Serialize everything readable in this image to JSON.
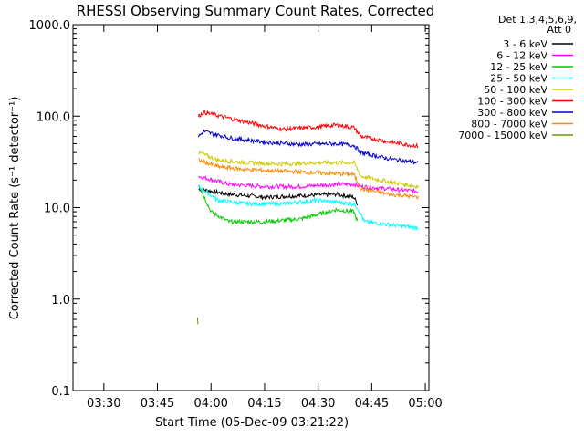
{
  "chart_data": {
    "type": "line",
    "title": "RHESSI Observing Summary Count Rates, Corrected",
    "xlabel": "Start Time (05-Dec-09 03:21:22)",
    "ylabel": "Corrected Count Rate (s⁻¹ detector⁻¹)",
    "yscale": "log",
    "ylim": [
      0.1,
      1000.0
    ],
    "xlim": [
      "03:21:22",
      "05:01:00"
    ],
    "x_ticks": [
      "03:30",
      "03:45",
      "04:00",
      "04:15",
      "04:30",
      "04:45",
      "05:00"
    ],
    "y_ticks": [
      "0.1",
      "1.0",
      "10.0",
      "100.0",
      "1000.0"
    ],
    "grid": false,
    "legend_position": "top-right",
    "legend_header": [
      "Det 1,3,4,5,6,9,",
      "Att 0"
    ],
    "series": [
      {
        "name": "3 - 6 keV",
        "color": "#000000",
        "points": [
          [
            "03:56:30",
            16
          ],
          [
            "04:05",
            14
          ],
          [
            "04:15",
            13
          ],
          [
            "04:25",
            13.5
          ],
          [
            "04:35",
            14
          ],
          [
            "04:40",
            13
          ],
          [
            "04:41",
            11
          ]
        ]
      },
      {
        "name": "6 - 12 keV",
        "color": "#ff00ff",
        "points": [
          [
            "03:56:30",
            22
          ],
          [
            "04:05",
            18
          ],
          [
            "04:15",
            17
          ],
          [
            "04:25",
            17
          ],
          [
            "04:35",
            18
          ],
          [
            "04:40",
            18
          ],
          [
            "04:42",
            17
          ],
          [
            "04:50",
            16
          ],
          [
            "04:58",
            15
          ]
        ]
      },
      {
        "name": "12 - 25 keV",
        "color": "#00cc00",
        "points": [
          [
            "03:56:30",
            18
          ],
          [
            "04:00",
            9
          ],
          [
            "04:05",
            7
          ],
          [
            "04:15",
            7
          ],
          [
            "04:25",
            7.5
          ],
          [
            "04:35",
            9.5
          ],
          [
            "04:40",
            9
          ],
          [
            "04:41",
            7
          ]
        ]
      },
      {
        "name": "25 - 50 keV",
        "color": "#00ffff",
        "points": [
          [
            "03:56:30",
            17
          ],
          [
            "04:02",
            12
          ],
          [
            "04:10",
            11
          ],
          [
            "04:20",
            11
          ],
          [
            "04:30",
            12
          ],
          [
            "04:40",
            11
          ],
          [
            "04:41",
            10
          ],
          [
            "04:43",
            7
          ],
          [
            "04:50",
            6.5
          ],
          [
            "04:58",
            6
          ]
        ]
      },
      {
        "name": "50 - 100 keV",
        "color": "#cccc00",
        "points": [
          [
            "03:56:30",
            40
          ],
          [
            "04:02",
            33
          ],
          [
            "04:10",
            31
          ],
          [
            "04:20",
            30
          ],
          [
            "04:30",
            31
          ],
          [
            "04:40",
            31
          ],
          [
            "04:42",
            22
          ],
          [
            "04:50",
            19
          ],
          [
            "04:58",
            17
          ]
        ]
      },
      {
        "name": "100 - 300 keV",
        "color": "#ff0000",
        "points": [
          [
            "03:56:30",
            100
          ],
          [
            "03:58",
            110
          ],
          [
            "04:05",
            95
          ],
          [
            "04:15",
            78
          ],
          [
            "04:20",
            72
          ],
          [
            "04:30",
            76
          ],
          [
            "04:35",
            80
          ],
          [
            "04:40",
            75
          ],
          [
            "04:42",
            60
          ],
          [
            "04:50",
            52
          ],
          [
            "04:58",
            47
          ]
        ]
      },
      {
        "name": "300 - 800 keV",
        "color": "#0000cc",
        "points": [
          [
            "03:56:30",
            60
          ],
          [
            "03:58",
            68
          ],
          [
            "04:05",
            58
          ],
          [
            "04:15",
            52
          ],
          [
            "04:25",
            49
          ],
          [
            "04:35",
            50
          ],
          [
            "04:40",
            48
          ],
          [
            "04:42",
            40
          ],
          [
            "04:50",
            34
          ],
          [
            "04:58",
            31
          ]
        ]
      },
      {
        "name": "800 - 7000 keV",
        "color": "#ff8800",
        "points": [
          [
            "03:56:30",
            33
          ],
          [
            "04:02",
            28
          ],
          [
            "04:10",
            26
          ],
          [
            "04:20",
            25
          ],
          [
            "04:30",
            24
          ],
          [
            "04:40",
            23
          ],
          [
            "04:42",
            16
          ],
          [
            "04:50",
            14
          ],
          [
            "04:58",
            13
          ]
        ]
      },
      {
        "name": "7000 - 15000 keV",
        "color": "#669900",
        "points": [
          [
            "03:56:10",
            0.65
          ],
          [
            "03:56:20",
            0.55
          ]
        ]
      }
    ]
  }
}
